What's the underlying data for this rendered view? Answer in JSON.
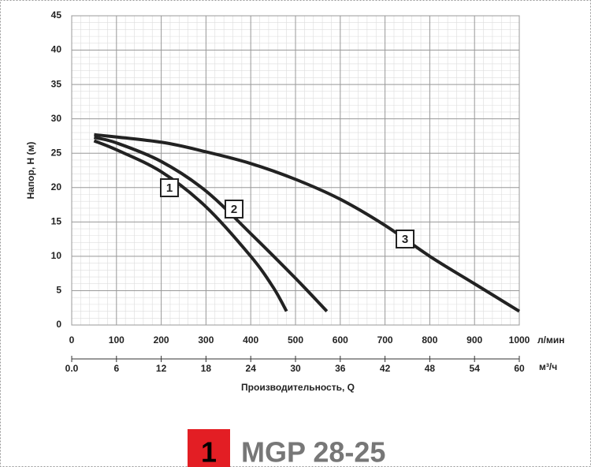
{
  "chart_data": {
    "type": "line",
    "xlabel": "Производительность, Q",
    "ylabel": "Напор, Н (м)",
    "x_unit": "л/мин",
    "x2_unit": "м³/ч",
    "xlim": [
      0,
      1000
    ],
    "xticks": [
      0,
      100,
      200,
      300,
      400,
      500,
      600,
      700,
      800,
      900,
      1000
    ],
    "x2lim": [
      0,
      60
    ],
    "x2ticks": [
      {
        "value": 0,
        "label": "0.0"
      },
      6,
      12,
      18,
      24,
      30,
      36,
      42,
      48,
      54,
      60
    ],
    "ylim": [
      0,
      45
    ],
    "yticks": [
      0,
      5,
      10,
      15,
      20,
      25,
      30,
      35,
      40,
      45
    ],
    "grid": true,
    "series": [
      {
        "name": "1",
        "color": "#222222",
        "x": [
          50,
          100,
          200,
          300,
          400,
          450,
          480
        ],
        "values": [
          26.8,
          25.5,
          22.3,
          17.2,
          10,
          5.5,
          2
        ]
      },
      {
        "name": "2",
        "color": "#222222",
        "x": [
          50,
          100,
          200,
          300,
          400,
          500,
          570
        ],
        "values": [
          27.3,
          26.5,
          23.8,
          19.5,
          13.3,
          6.8,
          2
        ]
      },
      {
        "name": "3",
        "color": "#222222",
        "x": [
          50,
          200,
          300,
          400,
          500,
          600,
          700,
          800,
          900,
          1000
        ],
        "values": [
          27.7,
          26.6,
          25.2,
          23.5,
          21.2,
          18.3,
          14.5,
          10,
          6,
          2
        ]
      }
    ]
  },
  "footer": {
    "number": "1",
    "model": "MGP 28-25"
  }
}
